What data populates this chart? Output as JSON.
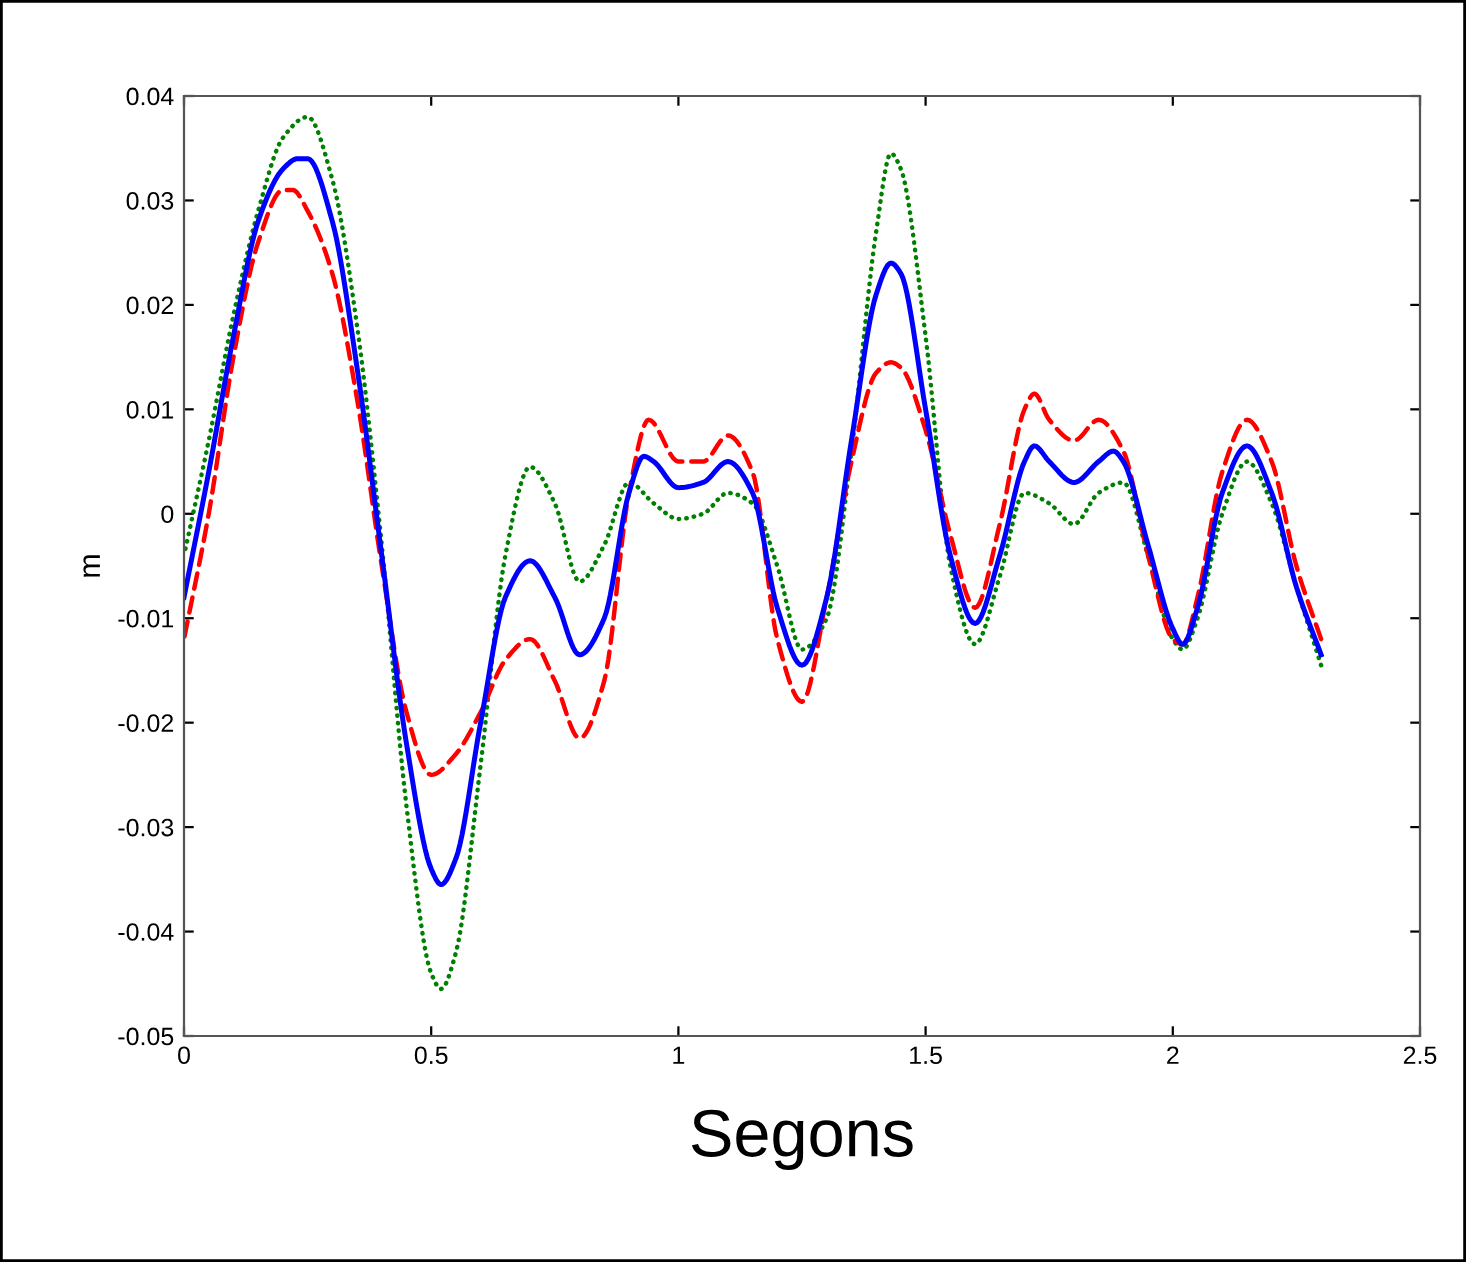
{
  "chart_data": {
    "type": "line",
    "xlabel": "Segons",
    "ylabel": "m",
    "xlim": [
      0,
      2.5
    ],
    "xticks": [
      0,
      0.5,
      1,
      1.5,
      2,
      2.5
    ],
    "ylim": [
      -0.05,
      0.04
    ],
    "yticks": [
      -0.05,
      -0.04,
      -0.03,
      -0.02,
      -0.01,
      0,
      0.01,
      0.02,
      0.03,
      0.04
    ],
    "grid": false,
    "legend": false,
    "series": [
      {
        "color": "#008000",
        "line_style": "dotted",
        "x": [
          0,
          0.05,
          0.1,
          0.15,
          0.2,
          0.25,
          0.3,
          0.35,
          0.4,
          0.45,
          0.5,
          0.52,
          0.55,
          0.6,
          0.65,
          0.7,
          0.75,
          0.8,
          0.85,
          0.9,
          0.95,
          1.0,
          1.05,
          1.1,
          1.15,
          1.2,
          1.25,
          1.3,
          1.35,
          1.4,
          1.43,
          1.45,
          1.5,
          1.55,
          1.6,
          1.65,
          1.7,
          1.75,
          1.8,
          1.85,
          1.9,
          1.95,
          2.0,
          2.02,
          2.05,
          2.1,
          2.15,
          2.2,
          2.25,
          2.3
        ],
        "values": [
          -0.004,
          0.007,
          0.019,
          0.029,
          0.036,
          0.038,
          0.032,
          0.018,
          -0.003,
          -0.028,
          -0.044,
          -0.0455,
          -0.042,
          -0.024,
          -0.004,
          0.0045,
          0.001,
          -0.0065,
          -0.003,
          0.003,
          0.001,
          -0.0005,
          0.0,
          0.002,
          0.001,
          -0.005,
          -0.013,
          -0.01,
          0.006,
          0.027,
          0.0345,
          0.033,
          0.017,
          -0.005,
          -0.0125,
          -0.006,
          0.002,
          0.001,
          -0.001,
          0.002,
          0.003,
          -0.004,
          -0.012,
          -0.013,
          -0.01,
          0.0,
          0.005,
          0.001,
          -0.007,
          -0.0145
        ]
      },
      {
        "color": "#ff0000",
        "line_style": "dashed",
        "x": [
          0,
          0.05,
          0.1,
          0.15,
          0.2,
          0.22,
          0.25,
          0.3,
          0.35,
          0.4,
          0.45,
          0.5,
          0.55,
          0.6,
          0.65,
          0.7,
          0.75,
          0.8,
          0.85,
          0.9,
          0.94,
          1.0,
          1.05,
          1.1,
          1.15,
          1.2,
          1.25,
          1.3,
          1.35,
          1.4,
          1.43,
          1.45,
          1.5,
          1.55,
          1.6,
          1.65,
          1.7,
          1.72,
          1.75,
          1.8,
          1.85,
          1.9,
          1.95,
          2.0,
          2.02,
          2.05,
          2.1,
          2.15,
          2.2,
          2.25,
          2.3
        ],
        "values": [
          -0.012,
          0.0,
          0.015,
          0.026,
          0.031,
          0.031,
          0.029,
          0.023,
          0.011,
          -0.005,
          -0.019,
          -0.025,
          -0.023,
          -0.019,
          -0.014,
          -0.012,
          -0.016,
          -0.0215,
          -0.016,
          0.002,
          0.009,
          0.005,
          0.005,
          0.0075,
          0.004,
          -0.012,
          -0.018,
          -0.008,
          0.005,
          0.0135,
          0.0145,
          0.014,
          0.008,
          -0.002,
          -0.009,
          -0.001,
          0.01,
          0.0115,
          0.009,
          0.007,
          0.009,
          0.006,
          -0.004,
          -0.012,
          -0.0125,
          -0.008,
          0.004,
          0.009,
          0.005,
          -0.005,
          -0.012
        ]
      },
      {
        "color": "#0000ff",
        "line_style": "solid",
        "x": [
          0,
          0.05,
          0.1,
          0.15,
          0.2,
          0.23,
          0.25,
          0.3,
          0.35,
          0.4,
          0.45,
          0.5,
          0.52,
          0.55,
          0.6,
          0.65,
          0.7,
          0.75,
          0.8,
          0.85,
          0.9,
          0.93,
          0.95,
          1.0,
          1.05,
          1.1,
          1.15,
          1.2,
          1.25,
          1.3,
          1.35,
          1.4,
          1.43,
          1.45,
          1.5,
          1.55,
          1.6,
          1.65,
          1.7,
          1.72,
          1.75,
          1.8,
          1.85,
          1.88,
          1.9,
          1.95,
          2.0,
          2.02,
          2.05,
          2.1,
          2.15,
          2.2,
          2.25,
          2.3
        ],
        "values": [
          -0.008,
          0.004,
          0.017,
          0.028,
          0.033,
          0.034,
          0.034,
          0.028,
          0.014,
          -0.004,
          -0.022,
          -0.034,
          -0.0355,
          -0.033,
          -0.02,
          -0.008,
          -0.0045,
          -0.008,
          -0.0135,
          -0.01,
          0.002,
          0.0055,
          0.005,
          0.0025,
          0.003,
          0.005,
          0.002,
          -0.009,
          -0.0145,
          -0.008,
          0.007,
          0.021,
          0.024,
          0.023,
          0.01,
          -0.004,
          -0.0105,
          -0.004,
          0.005,
          0.0065,
          0.005,
          0.003,
          0.005,
          0.006,
          0.005,
          -0.003,
          -0.011,
          -0.0125,
          -0.009,
          0.002,
          0.0065,
          0.002,
          -0.007,
          -0.0135
        ]
      }
    ]
  }
}
